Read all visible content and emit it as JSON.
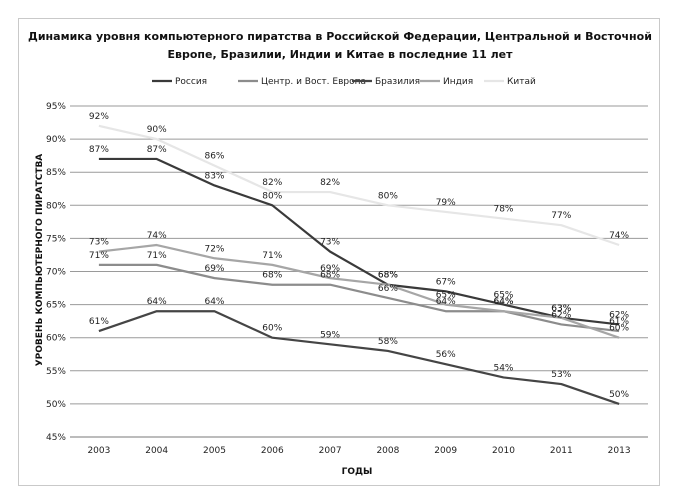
{
  "chart_data": {
    "type": "line",
    "title_lines": [
      "Динамика уровня компьютерного пиратства в Российской Федерации, Центральной и Восточной",
      "Европе, Бразилии, Индии и Китае в последние 11 лет"
    ],
    "xlabel": "ГОДЫ",
    "ylabel": "УРОВЕНЬ КОМПЬЮТЕРНОГО ПИРАТСТВА",
    "categories": [
      "2003",
      "2004",
      "2005",
      "2006",
      "2007",
      "2008",
      "2009",
      "2010",
      "2011",
      "2013"
    ],
    "ylim": [
      45,
      95
    ],
    "yticks": [
      45,
      50,
      55,
      60,
      65,
      70,
      75,
      80,
      85,
      90,
      95
    ],
    "ytick_labels": [
      "45%",
      "50%",
      "55%",
      "60%",
      "65%",
      "70%",
      "75%",
      "80%",
      "85%",
      "90%",
      "95%"
    ],
    "grid": true,
    "legend_position": "top",
    "series": [
      {
        "name": "Россия",
        "color": "#3a3a3a",
        "width": 2.2,
        "values": [
          87,
          87,
          83,
          80,
          73,
          68,
          67,
          65,
          63,
          62
        ],
        "labels": [
          "87%",
          "87%",
          "83%",
          "80%",
          "73%",
          "68%",
          "67%",
          "65%",
          "63%",
          "62%"
        ]
      },
      {
        "name": "Центр. и Вост. Европа",
        "color": "#8c8c8c",
        "width": 2.2,
        "values": [
          71,
          71,
          69,
          68,
          68,
          66,
          64,
          64,
          62,
          61
        ],
        "labels": [
          "71%",
          "71%",
          "69%",
          "68%",
          "68%",
          "66%",
          "64%",
          "64%",
          "62%",
          "61%"
        ]
      },
      {
        "name": "Бразилия",
        "color": "#454545",
        "width": 2.2,
        "values": [
          61,
          64,
          64,
          60,
          59,
          58,
          56,
          54,
          53,
          50
        ],
        "labels": [
          "61%",
          "64%",
          "64%",
          "60%",
          "59%",
          "58%",
          "56%",
          "54%",
          "53%",
          "50%"
        ]
      },
      {
        "name": "Индия",
        "color": "#a6a6a6",
        "width": 2.2,
        "values": [
          73,
          74,
          72,
          71,
          69,
          68,
          65,
          64,
          63,
          60
        ],
        "labels": [
          "73%",
          "74%",
          "72%",
          "71%",
          "69%",
          "68%",
          "65%",
          "64%",
          "63%",
          "60%"
        ]
      },
      {
        "name": "Китай",
        "color": "#e6e6e6",
        "width": 2.2,
        "values": [
          92,
          90,
          86,
          82,
          82,
          80,
          79,
          78,
          77,
          74
        ],
        "labels": [
          "92%",
          "90%",
          "86%",
          "82%",
          "82%",
          "80%",
          "79%",
          "78%",
          "77%",
          "74%"
        ]
      }
    ]
  }
}
